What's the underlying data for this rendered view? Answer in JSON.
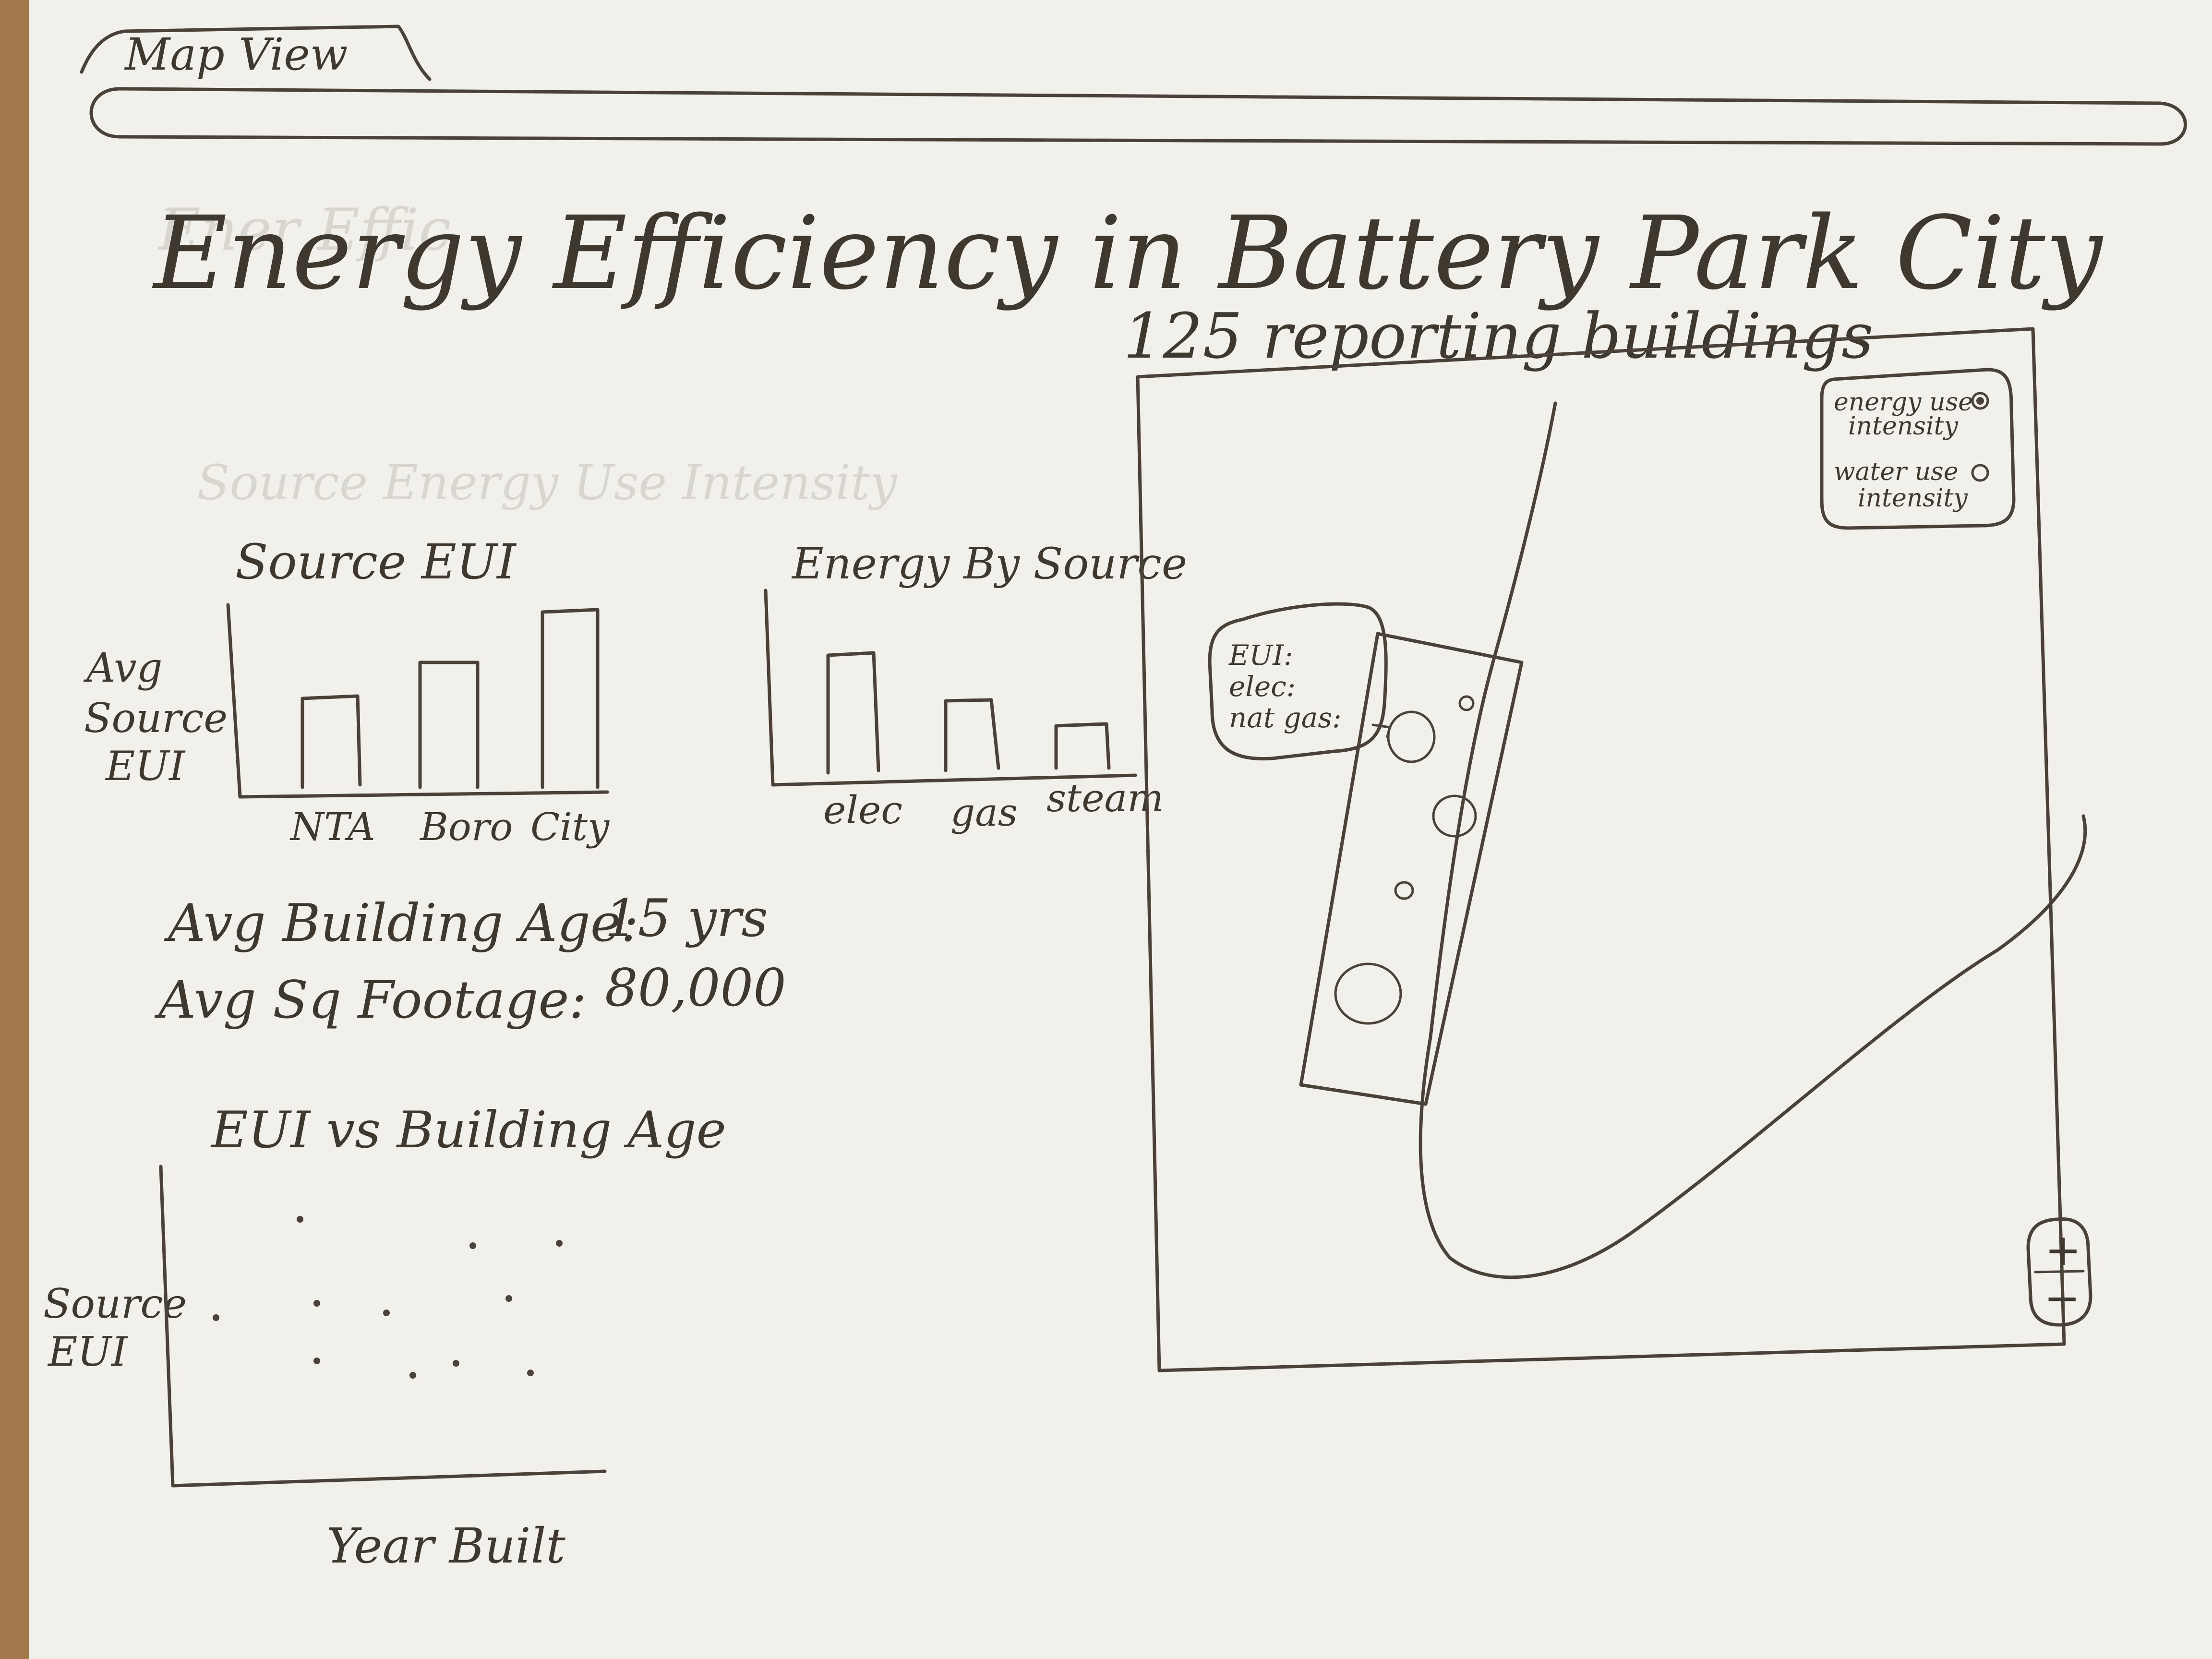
{
  "tab": {
    "label": "Map View"
  },
  "page": {
    "title": "Energy Efficiency in Battery Park City",
    "reporting": "125 reporting buildings"
  },
  "source_eui_chart": {
    "title": "Source EUI",
    "ylabel": [
      "Avg",
      "Source",
      "EUI"
    ],
    "categories": [
      "NTA",
      "Boro",
      "City"
    ]
  },
  "energy_by_source_chart": {
    "title": "Energy By Source",
    "categories": [
      "elec",
      "gas",
      "steam"
    ]
  },
  "stats": {
    "age_label": "Avg Building Age:",
    "age_value": "15 yrs",
    "sqft_label": "Avg Sq Footage:",
    "sqft_value": "80,000"
  },
  "scatter_chart": {
    "title": "EUI vs Building Age",
    "ylabel": [
      "Source",
      "EUI"
    ],
    "xlabel": "Year Built"
  },
  "map": {
    "legend": {
      "energy_label": [
        "energy use",
        "intensity"
      ],
      "water_label": [
        "water use",
        "intensity"
      ]
    },
    "tooltip": [
      "EUI:",
      "elec:",
      "nat gas:"
    ],
    "zoom_in": "+",
    "zoom_out": "−"
  },
  "colors": {
    "paper": "#f2f0ea",
    "ink": "#4a4238",
    "wood": "#a0784a"
  }
}
